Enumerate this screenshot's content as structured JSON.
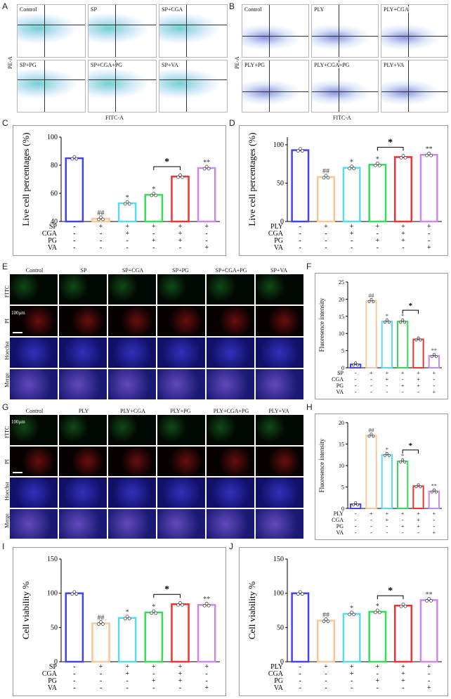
{
  "panel_letters": [
    "A",
    "B",
    "C",
    "D",
    "E",
    "F",
    "G",
    "H",
    "I",
    "J"
  ],
  "flow": {
    "A": {
      "labels": [
        "Control",
        "SP",
        "SP+CGA",
        "SP+PG",
        "SP+CGA+PG",
        "SP+VA"
      ],
      "x_axis": "FITC-A",
      "y_axis": "PE-A"
    },
    "B": {
      "labels": [
        "Control",
        "PLY",
        "PLY+CGA",
        "PLY+PG",
        "PLY+CGA+PG",
        "PLY+VA"
      ],
      "x_axis": "FITC-A",
      "y_axis": "PE-A"
    }
  },
  "micro": {
    "E": {
      "columns": [
        "Control",
        "SP",
        "SP+CGA",
        "SP+PG",
        "SP+CGA+PG",
        "SP+VA"
      ],
      "rows": [
        "FITC",
        "PI",
        "Hoechst",
        "Merge"
      ],
      "scale": "100μm"
    },
    "G": {
      "columns": [
        "Control",
        "PLY",
        "PLY+CGA",
        "PLY+PG",
        "PLY+CGA+PG",
        "PLY+VA"
      ],
      "rows": [
        "FITC",
        "PI",
        "Hoechst",
        "Merge"
      ],
      "scale": "100μm"
    }
  },
  "chart_data": [
    {
      "id": "C",
      "type": "bar",
      "ylabel": "Live cell percentages (%)",
      "yticks": [
        40,
        60,
        80,
        100
      ],
      "ylim": [
        40,
        100
      ],
      "values": [
        85,
        42,
        53,
        59,
        72,
        78
      ],
      "colors": [
        "#4444ee",
        "#f7c89b",
        "#55ddee",
        "#33dd55",
        "#ee3333",
        "#cc88ee"
      ],
      "marks": [
        "",
        "##",
        "*",
        "*",
        "",
        "**"
      ],
      "bracket": {
        "from": 3,
        "to": 4,
        "mark": "*"
      },
      "factor_rows": [
        {
          "name": "SP",
          "signs": [
            "-",
            "+",
            "+",
            "+",
            "+",
            "+"
          ]
        },
        {
          "name": "CGA",
          "signs": [
            "-",
            "-",
            "+",
            "-",
            "+",
            "-"
          ]
        },
        {
          "name": "PG",
          "signs": [
            "-",
            "-",
            "-",
            "+",
            "+",
            "-"
          ]
        },
        {
          "name": "VA",
          "signs": [
            "-",
            "-",
            "-",
            "-",
            "-",
            "+"
          ]
        }
      ]
    },
    {
      "id": "D",
      "type": "bar",
      "ylabel": "Live cell percentages (%)",
      "yticks": [
        0,
        50,
        100
      ],
      "ylim": [
        0,
        110
      ],
      "values": [
        93,
        58,
        70,
        74,
        84,
        87
      ],
      "colors": [
        "#4444ee",
        "#f7c89b",
        "#55ddee",
        "#33dd55",
        "#ee3333",
        "#cc88ee"
      ],
      "marks": [
        "",
        "##",
        "*",
        "*",
        "",
        "**"
      ],
      "bracket": {
        "from": 3,
        "to": 4,
        "mark": "*"
      },
      "factor_rows": [
        {
          "name": "PLY",
          "signs": [
            "-",
            "+",
            "+",
            "+",
            "+",
            "+"
          ]
        },
        {
          "name": "CGA",
          "signs": [
            "-",
            "-",
            "+",
            "-",
            "+",
            "-"
          ]
        },
        {
          "name": "PG",
          "signs": [
            "-",
            "-",
            "-",
            "+",
            "+",
            "-"
          ]
        },
        {
          "name": "VA",
          "signs": [
            "-",
            "-",
            "-",
            "-",
            "-",
            "+"
          ]
        }
      ]
    },
    {
      "id": "F",
      "type": "bar",
      "ylabel": "Fluoresence intensity",
      "yticks": [
        0,
        5,
        10,
        15,
        20,
        25
      ],
      "ylim": [
        0,
        25
      ],
      "values": [
        1.0,
        19.5,
        13.5,
        13.5,
        8.3,
        3.5
      ],
      "colors": [
        "#4444ee",
        "#f7c89b",
        "#55ddee",
        "#33dd55",
        "#ee3333",
        "#cc88ee"
      ],
      "marks": [
        "",
        "##",
        "*",
        "*",
        "",
        "**"
      ],
      "bracket": {
        "from": 3,
        "to": 4,
        "mark": "*"
      },
      "factor_rows": [
        {
          "name": "SP",
          "signs": [
            "-",
            "+",
            "+",
            "+",
            "+",
            "+"
          ]
        },
        {
          "name": "CGA",
          "signs": [
            "-",
            "-",
            "+",
            "-",
            "+",
            "-"
          ]
        },
        {
          "name": "PG",
          "signs": [
            "-",
            "-",
            "-",
            "+",
            "+",
            "-"
          ]
        },
        {
          "name": "VA",
          "signs": [
            "-",
            "-",
            "-",
            "-",
            "-",
            "+"
          ]
        }
      ]
    },
    {
      "id": "H",
      "type": "bar",
      "ylabel": "Fluoresence intensity",
      "yticks": [
        0,
        5,
        10,
        15,
        20
      ],
      "ylim": [
        0,
        20
      ],
      "values": [
        1.0,
        17.0,
        12.5,
        11.0,
        5.2,
        4.0
      ],
      "colors": [
        "#4444ee",
        "#f7c89b",
        "#55ddee",
        "#33dd55",
        "#ee3333",
        "#cc88ee"
      ],
      "marks": [
        "",
        "##",
        "*",
        "*",
        "",
        "**"
      ],
      "bracket": {
        "from": 3,
        "to": 4,
        "mark": "*"
      },
      "factor_rows": [
        {
          "name": "PLY",
          "signs": [
            "-",
            "+",
            "+",
            "+",
            "+",
            "+"
          ]
        },
        {
          "name": "CGA",
          "signs": [
            "-",
            "-",
            "+",
            "-",
            "+",
            "-"
          ]
        },
        {
          "name": "PG",
          "signs": [
            "-",
            "-",
            "-",
            "+",
            "+",
            "-"
          ]
        },
        {
          "name": "VA",
          "signs": [
            "-",
            "-",
            "-",
            "-",
            "-",
            "+"
          ]
        }
      ]
    },
    {
      "id": "I",
      "type": "bar",
      "ylabel": "Cell viability %",
      "yticks": [
        0,
        50,
        100,
        150
      ],
      "ylim": [
        0,
        150
      ],
      "values": [
        100,
        56,
        64,
        72,
        84,
        83
      ],
      "colors": [
        "#4444ee",
        "#f7c89b",
        "#55ddee",
        "#33dd55",
        "#ee3333",
        "#cc88ee"
      ],
      "marks": [
        "",
        "##",
        "*",
        "*",
        "",
        "**"
      ],
      "bracket": {
        "from": 3,
        "to": 4,
        "mark": "*"
      },
      "factor_rows": [
        {
          "name": "SP",
          "signs": [
            "-",
            "+",
            "+",
            "+",
            "+",
            "+"
          ]
        },
        {
          "name": "CGA",
          "signs": [
            "-",
            "-",
            "+",
            "-",
            "+",
            "-"
          ]
        },
        {
          "name": "PG",
          "signs": [
            "-",
            "-",
            "-",
            "+",
            "+",
            "-"
          ]
        },
        {
          "name": "VA",
          "signs": [
            "-",
            "-",
            "-",
            "-",
            "-",
            "+"
          ]
        }
      ]
    },
    {
      "id": "J",
      "type": "bar",
      "ylabel": "Cell viability %",
      "yticks": [
        0,
        50,
        100,
        150
      ],
      "ylim": [
        0,
        150
      ],
      "values": [
        100,
        60,
        70,
        73,
        82,
        90
      ],
      "colors": [
        "#4444ee",
        "#f7c89b",
        "#55ddee",
        "#33dd55",
        "#ee3333",
        "#cc88ee"
      ],
      "marks": [
        "",
        "##",
        "*",
        "*",
        "",
        "**"
      ],
      "bracket": {
        "from": 3,
        "to": 4,
        "mark": "*"
      },
      "factor_rows": [
        {
          "name": "PLY",
          "signs": [
            "-",
            "+",
            "+",
            "+",
            "+",
            "+"
          ]
        },
        {
          "name": "CGA",
          "signs": [
            "-",
            "-",
            "+",
            "-",
            "+",
            "-"
          ]
        },
        {
          "name": "PG",
          "signs": [
            "-",
            "-",
            "-",
            "+",
            "+",
            "-"
          ]
        },
        {
          "name": "VA",
          "signs": [
            "-",
            "-",
            "-",
            "-",
            "-",
            "+"
          ]
        }
      ]
    }
  ]
}
